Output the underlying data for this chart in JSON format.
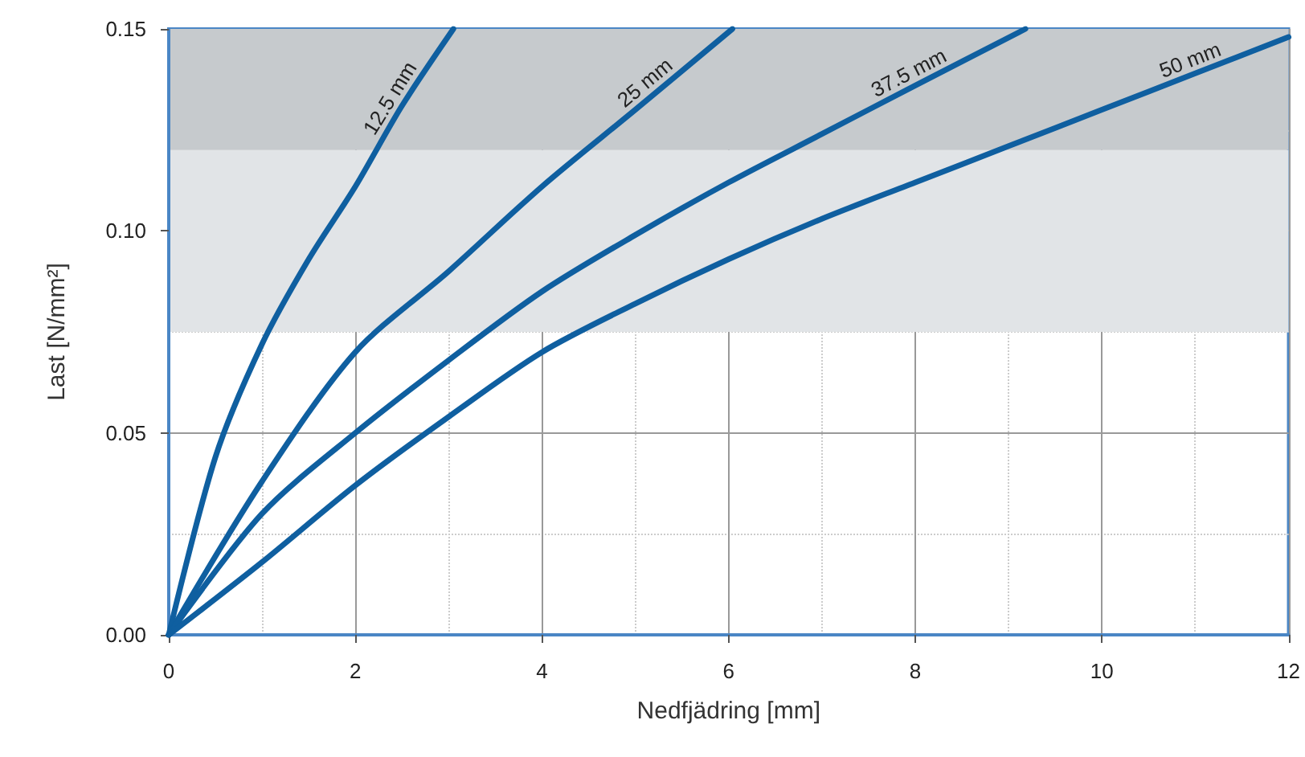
{
  "chart_data": {
    "type": "line",
    "xlabel": "Nedfjädring [mm]",
    "ylabel": "Last [N/mm²]",
    "xlim": [
      0,
      12
    ],
    "ylim": [
      0,
      0.15
    ],
    "xticks": [
      0,
      2,
      4,
      6,
      8,
      10,
      12
    ],
    "yticks": [
      {
        "value": 0,
        "label": "0.00"
      },
      {
        "value": 0.05,
        "label": "0.05"
      },
      {
        "value": 0.1,
        "label": "0.10"
      },
      {
        "value": 0.15,
        "label": "0.15"
      }
    ],
    "grid": true,
    "marker": "none",
    "line_style": "solid",
    "bands": [
      {
        "axis": "y",
        "from": 0.075,
        "to": 0.12,
        "color": "#e1e4e7"
      },
      {
        "axis": "y",
        "from": 0.12,
        "to": 0.15,
        "color": "#c6cacd"
      }
    ],
    "series": [
      {
        "color": "#0f5fa0",
        "x": [
          0,
          0.5,
          1,
          1.5,
          2,
          2.5,
          3.05
        ],
        "values": [
          0,
          0.044,
          0.072,
          0.093,
          0.111,
          0.131,
          0.15
        ]
      },
      {
        "color": "#0f5fa0",
        "x": [
          0,
          1,
          2,
          3,
          4,
          5,
          6.04
        ],
        "values": [
          0,
          0.038,
          0.07,
          0.09,
          0.111,
          0.13,
          0.15
        ]
      },
      {
        "color": "#0f5fa0",
        "x": [
          0,
          1,
          2,
          3,
          4,
          5,
          6,
          7,
          8,
          9.18
        ],
        "values": [
          0,
          0.03,
          0.05,
          0.068,
          0.085,
          0.099,
          0.112,
          0.124,
          0.136,
          0.15
        ]
      },
      {
        "color": "#0f5fa0",
        "x": [
          0,
          1,
          2,
          3,
          4,
          5,
          6,
          7,
          8,
          9,
          10,
          11,
          12
        ],
        "values": [
          0,
          0.018,
          0.037,
          0.054,
          0.07,
          0.082,
          0.093,
          0.103,
          0.112,
          0.121,
          0.13,
          0.139,
          0.148
        ]
      }
    ],
    "annotations": [
      {
        "text": "12.5 mm",
        "x": 2.5,
        "y": 0.131
      },
      {
        "text": "25 mm",
        "x": 5.2,
        "y": 0.134
      },
      {
        "text": "37.5 mm",
        "x": 8,
        "y": 0.136
      },
      {
        "text": "50 mm",
        "x": 11,
        "y": 0.139
      }
    ]
  }
}
